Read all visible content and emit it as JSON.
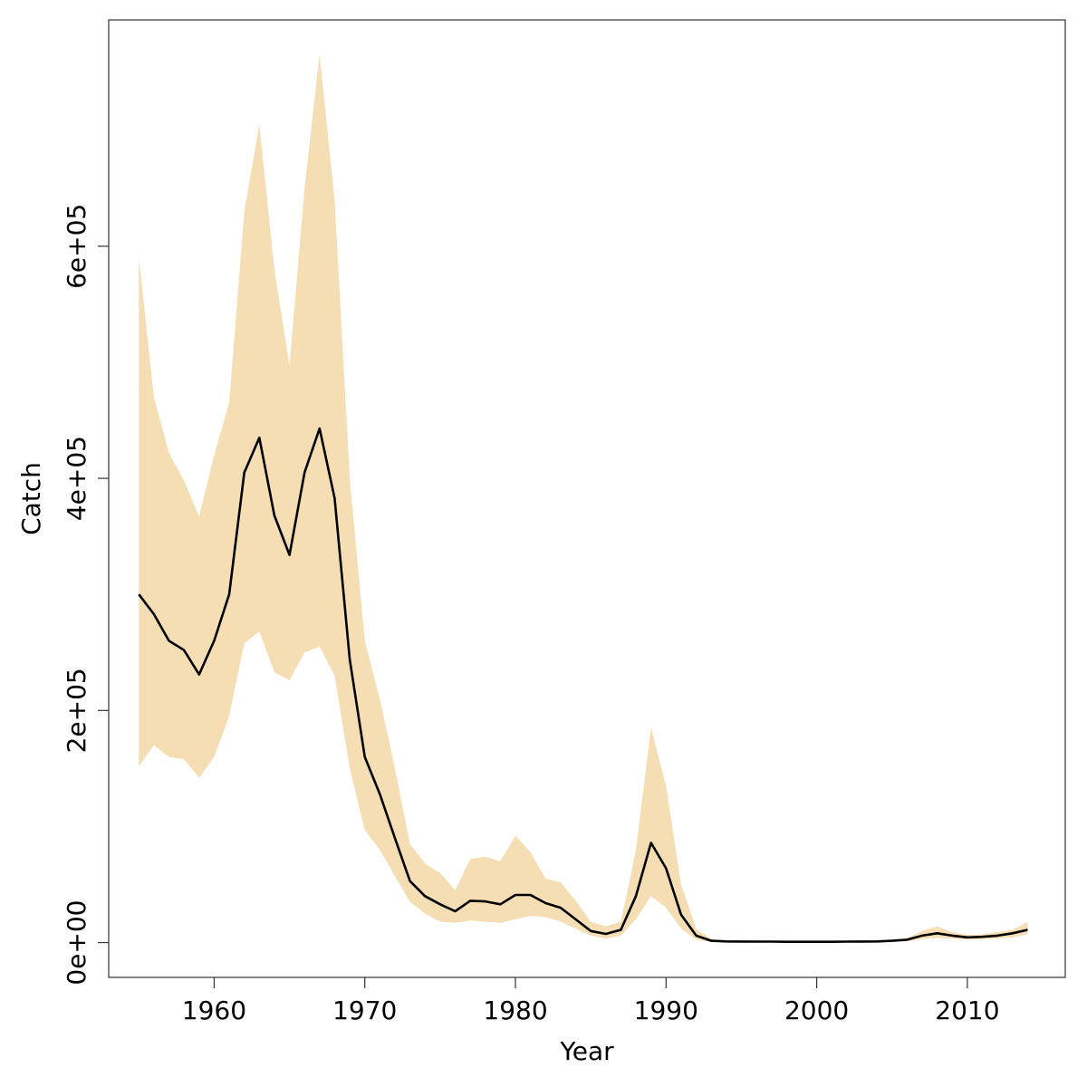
{
  "chart_data": {
    "type": "area",
    "title": "",
    "xlabel": "Year",
    "ylabel": "Catch",
    "xlim": [
      1953,
      2016.5
    ],
    "ylim": [
      -30000,
      795000
    ],
    "x_ticks": [
      1960,
      1970,
      1980,
      1990,
      2000,
      2010
    ],
    "x_tick_labels": [
      "1960",
      "1970",
      "1980",
      "1990",
      "2000",
      "2010"
    ],
    "y_ticks": [
      0,
      200000,
      400000,
      600000
    ],
    "y_tick_labels": [
      "0e+00",
      "2e+05",
      "4e+05",
      "6e+05"
    ],
    "grid": false,
    "legend": "none",
    "colors": {
      "band": "#f5deb3",
      "line": "#000000",
      "axis": "#333333"
    },
    "x": [
      1955,
      1956,
      1957,
      1958,
      1959,
      1960,
      1961,
      1962,
      1963,
      1964,
      1965,
      1966,
      1967,
      1968,
      1969,
      1970,
      1971,
      1972,
      1973,
      1974,
      1975,
      1976,
      1977,
      1978,
      1979,
      1980,
      1981,
      1982,
      1983,
      1984,
      1985,
      1986,
      1987,
      1988,
      1989,
      1990,
      1991,
      1992,
      1993,
      1994,
      1995,
      1996,
      1997,
      1998,
      1999,
      2000,
      2001,
      2002,
      2003,
      2004,
      2005,
      2006,
      2007,
      2008,
      2009,
      2010,
      2011,
      2012,
      2013,
      2014
    ],
    "series": [
      {
        "role": "median",
        "values": [
          300000,
          283000,
          260000,
          252000,
          231000,
          260000,
          300000,
          405000,
          435000,
          368000,
          334000,
          405000,
          443000,
          383000,
          244000,
          160000,
          128000,
          90000,
          53000,
          40000,
          33000,
          27000,
          36000,
          35500,
          33000,
          41000,
          41000,
          34000,
          30000,
          20000,
          10000,
          7500,
          11000,
          40000,
          86000,
          64000,
          24000,
          6000,
          1500,
          1000,
          900,
          800,
          800,
          700,
          700,
          700,
          700,
          800,
          900,
          1000,
          1500,
          2500,
          6000,
          8000,
          6000,
          4500,
          5000,
          6000,
          8000,
          11000
        ]
      },
      {
        "role": "upper",
        "values": [
          590000,
          470000,
          422000,
          398000,
          367000,
          420000,
          465000,
          630000,
          705000,
          580000,
          497000,
          650000,
          765000,
          640000,
          400000,
          260000,
          210000,
          150000,
          85000,
          68000,
          60000,
          45000,
          72000,
          74000,
          70000,
          92000,
          78000,
          55000,
          52000,
          36000,
          18000,
          14000,
          18000,
          80000,
          185000,
          135000,
          50000,
          12000,
          3000,
          2000,
          1800,
          1600,
          1500,
          1400,
          1300,
          1300,
          1300,
          1400,
          1500,
          1700,
          2500,
          4000,
          10000,
          14000,
          9000,
          6500,
          7000,
          9000,
          11000,
          18000
        ]
      },
      {
        "role": "lower",
        "values": [
          152000,
          170000,
          160000,
          158000,
          142000,
          160000,
          195000,
          258000,
          268000,
          233000,
          226000,
          250000,
          255000,
          230000,
          150000,
          97000,
          80000,
          57000,
          35000,
          25000,
          18000,
          17000,
          19000,
          18000,
          17000,
          20000,
          23000,
          22000,
          18000,
          12000,
          6000,
          3500,
          6000,
          20000,
          40000,
          30000,
          12000,
          2500,
          600,
          400,
          300,
          300,
          300,
          300,
          300,
          300,
          300,
          300,
          400,
          500,
          800,
          1200,
          3000,
          4000,
          3500,
          2500,
          3000,
          3500,
          4500,
          7000
        ]
      }
    ]
  }
}
